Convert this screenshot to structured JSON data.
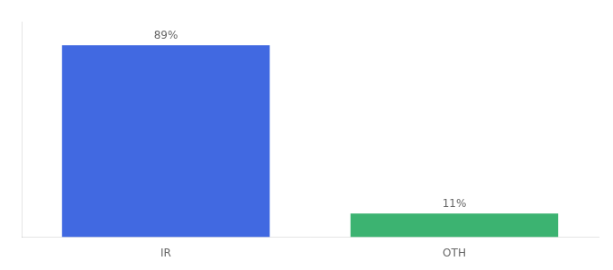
{
  "chart_data": {
    "type": "bar",
    "categories": [
      "IR",
      "OTH"
    ],
    "values": [
      89,
      11
    ],
    "value_labels": [
      "89%",
      "11%"
    ],
    "colors": [
      "#4169E1",
      "#3CB371"
    ],
    "ylim": [
      0,
      100
    ],
    "data_labels": true,
    "tick_labels": "x",
    "grid": false
  }
}
